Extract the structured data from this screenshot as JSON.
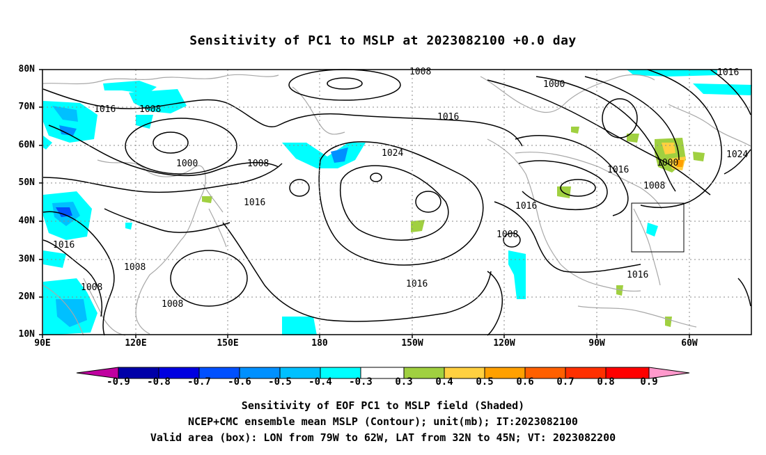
{
  "title": "Sensitivity of PC1 to MSLP at 2023082100 +0.0 day",
  "lat_ticks": [
    "80N",
    "70N",
    "60N",
    "50N",
    "40N",
    "30N",
    "20N",
    "10N"
  ],
  "lon_ticks": [
    "90E",
    "120E",
    "150E",
    "180",
    "150W",
    "120W",
    "90W",
    "60W"
  ],
  "contour_labels": [
    "1008",
    "1016",
    "1000",
    "1016",
    "1008",
    "1024",
    "1008",
    "1016",
    "1000",
    "1016",
    "1008",
    "1016",
    "1016",
    "1008",
    "1016",
    "1008",
    "1008",
    "1016",
    "1016",
    "1024",
    "1000",
    "1008"
  ],
  "colorbar": {
    "labels": [
      "-0.9",
      "-0.8",
      "-0.7",
      "-0.6",
      "-0.5",
      "-0.4",
      "-0.3",
      "0.3",
      "0.4",
      "0.5",
      "0.6",
      "0.7",
      "0.8",
      "0.9"
    ],
    "colors": [
      "#c000a0",
      "#0000a8",
      "#0000e0",
      "#0050ff",
      "#0090ff",
      "#00c0ff",
      "#00ffff",
      "#ffffff",
      "#a0d040",
      "#ffd040",
      "#ffa000",
      "#ff6000",
      "#ff3000",
      "#ff0000",
      "#ff99cc"
    ]
  },
  "valid_box": {
    "lon_from": "79W",
    "lon_to": "62W",
    "lat_from": "32N",
    "lat_to": "45N"
  },
  "captions": [
    "Sensitivity of EOF PC1 to MSLP field (Shaded)",
    "NCEP+CMC ensemble mean MSLP (Contour); unit(mb); IT:2023082100",
    "Valid area (box): LON from 79W to 62W, LAT from 32N to 45N; VT: 2023082200"
  ]
}
